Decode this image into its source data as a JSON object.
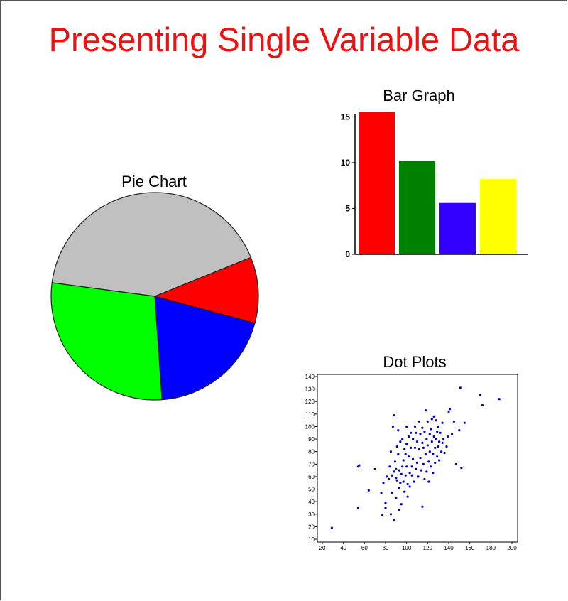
{
  "page": {
    "title": "Presenting Single Variable Data"
  },
  "chart_data": [
    {
      "type": "pie",
      "title": "Pie Chart",
      "slices": [
        {
          "value": 10.3,
          "color": "#ff0000"
        },
        {
          "value": 19.7,
          "color": "#0000ff"
        },
        {
          "value": 28.2,
          "color": "#00ff00"
        },
        {
          "value": 41.8,
          "color": "#c0c0c0"
        }
      ]
    },
    {
      "type": "bar",
      "title": "Bar Graph",
      "values": [
        15.5,
        10.2,
        5.6,
        8.2
      ],
      "colors": [
        "#ff0000",
        "#008000",
        "#3300ff",
        "#ffff00"
      ],
      "yticks": [
        0,
        5,
        10,
        15
      ],
      "ylim": [
        0,
        15.5
      ]
    },
    {
      "type": "scatter",
      "title": "Dot Plots",
      "color": "#0000cc",
      "xlim": [
        15,
        205
      ],
      "ylim": [
        10,
        140
      ],
      "xticks": [
        20,
        40,
        60,
        80,
        100,
        120,
        140,
        160,
        180,
        200
      ],
      "yticks": [
        10,
        20,
        30,
        40,
        50,
        60,
        70,
        80,
        90,
        100,
        110,
        120,
        130,
        140
      ],
      "points": [
        [
          29,
          19
        ],
        [
          54,
          35
        ],
        [
          54,
          68
        ],
        [
          55,
          69
        ],
        [
          64,
          49
        ],
        [
          70,
          66
        ],
        [
          76,
          47
        ],
        [
          77,
          29
        ],
        [
          78,
          55
        ],
        [
          80,
          35
        ],
        [
          80,
          39
        ],
        [
          81,
          60
        ],
        [
          83,
          58
        ],
        [
          84,
          68
        ],
        [
          85,
          80
        ],
        [
          85,
          30
        ],
        [
          86,
          47
        ],
        [
          86,
          61
        ],
        [
          87,
          100
        ],
        [
          88,
          109
        ],
        [
          88,
          25
        ],
        [
          88,
          64
        ],
        [
          89,
          72
        ],
        [
          90,
          43
        ],
        [
          90,
          66
        ],
        [
          90,
          59
        ],
        [
          91,
          84
        ],
        [
          91,
          57
        ],
        [
          92,
          97
        ],
        [
          92,
          78
        ],
        [
          93,
          65
        ],
        [
          93,
          51
        ],
        [
          93,
          33
        ],
        [
          94,
          88
        ],
        [
          94,
          55
        ],
        [
          95,
          62
        ],
        [
          95,
          38
        ],
        [
          96,
          90
        ],
        [
          96,
          68
        ],
        [
          97,
          73
        ],
        [
          97,
          56
        ],
        [
          98,
          82
        ],
        [
          98,
          48
        ],
        [
          99,
          61
        ],
        [
          99,
          78
        ],
        [
          100,
          100
        ],
        [
          100,
          86
        ],
        [
          100,
          68
        ],
        [
          101,
          44
        ],
        [
          101,
          54
        ],
        [
          102,
          92
        ],
        [
          102,
          76
        ],
        [
          103,
          63
        ],
        [
          103,
          52
        ],
        [
          104,
          95
        ],
        [
          104,
          83
        ],
        [
          105,
          68
        ],
        [
          105,
          61
        ],
        [
          106,
          90
        ],
        [
          106,
          74
        ],
        [
          107,
          56
        ],
        [
          108,
          100
        ],
        [
          108,
          83
        ],
        [
          109,
          95
        ],
        [
          109,
          66
        ],
        [
          110,
          88
        ],
        [
          110,
          71
        ],
        [
          111,
          60
        ],
        [
          112,
          104
        ],
        [
          112,
          82
        ],
        [
          113,
          94
        ],
        [
          113,
          75
        ],
        [
          114,
          65
        ],
        [
          115,
          99
        ],
        [
          115,
          87
        ],
        [
          115,
          36
        ],
        [
          116,
          83
        ],
        [
          116,
          70
        ],
        [
          117,
          96
        ],
        [
          117,
          58
        ],
        [
          118,
          113
        ],
        [
          118,
          78
        ],
        [
          119,
          90
        ],
        [
          119,
          64
        ],
        [
          120,
          104
        ],
        [
          120,
          85
        ],
        [
          121,
          72
        ],
        [
          121,
          56
        ],
        [
          122,
          94
        ],
        [
          122,
          80
        ],
        [
          123,
          98
        ],
        [
          123,
          68
        ],
        [
          124,
          106
        ],
        [
          124,
          88
        ],
        [
          125,
          78
        ],
        [
          125,
          63
        ],
        [
          126,
          108
        ],
        [
          126,
          92
        ],
        [
          127,
          83
        ],
        [
          127,
          71
        ],
        [
          128,
          105
        ],
        [
          128,
          90
        ],
        [
          129,
          96
        ],
        [
          129,
          76
        ],
        [
          130,
          100
        ],
        [
          130,
          84
        ],
        [
          131,
          88
        ],
        [
          131,
          73
        ],
        [
          132,
          95
        ],
        [
          133,
          80
        ],
        [
          134,
          103
        ],
        [
          134,
          87
        ],
        [
          135,
          90
        ],
        [
          136,
          79
        ],
        [
          138,
          84
        ],
        [
          139,
          92
        ],
        [
          140,
          112
        ],
        [
          141,
          114
        ],
        [
          143,
          94
        ],
        [
          145,
          104
        ],
        [
          147,
          70
        ],
        [
          150,
          97
        ],
        [
          151,
          131
        ],
        [
          152,
          67
        ],
        [
          155,
          103
        ],
        [
          170,
          125
        ],
        [
          172,
          117
        ],
        [
          188,
          122
        ]
      ]
    }
  ]
}
